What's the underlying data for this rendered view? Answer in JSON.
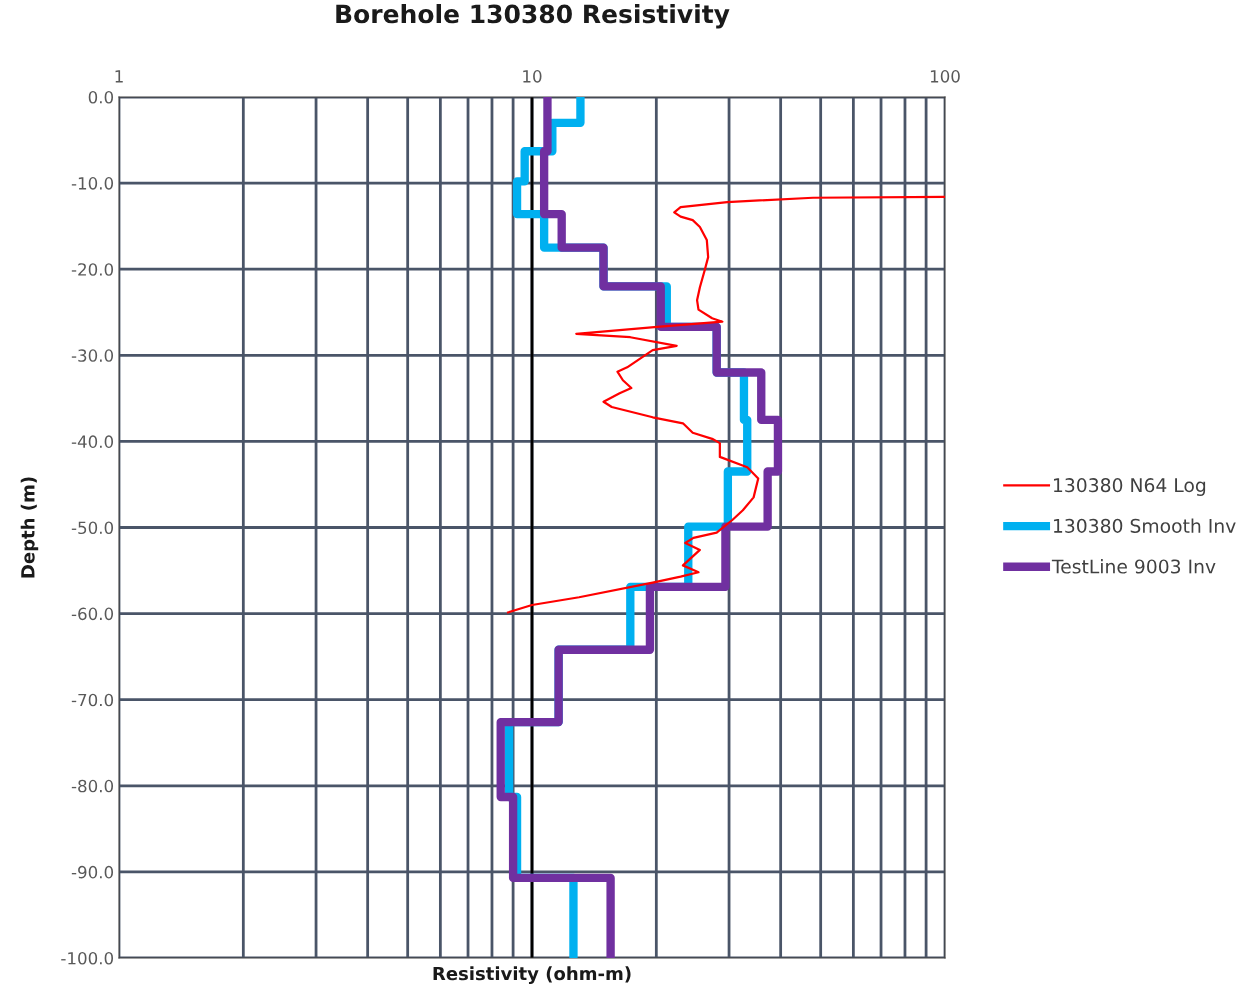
{
  "chart_data": {
    "type": "line",
    "title": "Borehole 130380 Resistivity",
    "xlabel": "Resistivity (ohm-m)",
    "ylabel": "Depth (m)",
    "log": "x",
    "grid": true,
    "legend": "right",
    "marker": "none",
    "line_style": "solid",
    "xlim": [
      1,
      100
    ],
    "xticks": [
      1,
      {
        "value": 2,
        "label": null
      },
      {
        "value": 3,
        "label": null
      },
      {
        "value": 4,
        "label": null
      },
      {
        "value": 5,
        "label": null
      },
      {
        "value": 6,
        "label": null
      },
      {
        "value": 7,
        "label": null
      },
      {
        "value": 8,
        "label": null
      },
      {
        "value": 9,
        "label": null
      },
      10,
      {
        "value": 20,
        "label": null
      },
      {
        "value": 30,
        "label": null
      },
      {
        "value": 40,
        "label": null
      },
      {
        "value": 50,
        "label": null
      },
      {
        "value": 60,
        "label": null
      },
      {
        "value": 70,
        "label": null
      },
      {
        "value": 80,
        "label": null
      },
      {
        "value": 90,
        "label": null
      },
      100
    ],
    "ylim": [
      -100,
      0
    ],
    "yticks": [
      {
        "value": 0,
        "label": "0.0"
      },
      {
        "value": -10,
        "label": "-10.0"
      },
      {
        "value": -20,
        "label": "-20.0"
      },
      {
        "value": -30,
        "label": "-30.0"
      },
      {
        "value": -40,
        "label": "-40.0"
      },
      {
        "value": -50,
        "label": "-50.0"
      },
      {
        "value": -60,
        "label": "-60.0"
      },
      {
        "value": -70,
        "label": "-70.0"
      },
      {
        "value": -80,
        "label": "-80.0"
      },
      {
        "value": -90,
        "label": "-90.0"
      },
      {
        "value": -100,
        "label": "-100.0"
      }
    ],
    "ref_lines": [
      {
        "axis": "x",
        "value": 10,
        "color": "#000000"
      }
    ],
    "series": [
      {
        "name": "130380 N64 Log",
        "color": "#ff0000",
        "x": [
          100,
          47.9,
          29.7,
          22.9,
          22.1,
          22.9,
          24.5,
          25.5,
          26.5,
          26.7,
          26.2,
          25.5,
          25.1,
          25.3,
          27.3,
          28.9,
          20.1,
          12.8,
          17.3,
          22.4,
          19.6,
          17.0,
          16.1,
          16.6,
          17.4,
          16.3,
          14.9,
          15.6,
          19.6,
          23.2,
          24.5,
          27.3,
          28.5,
          28.5,
          33.2,
          35.3,
          34.4,
          32.4,
          30.6,
          28.0,
          24.6,
          23.5,
          25.5,
          23.2,
          25.3,
          22.9,
          19.6,
          13.0,
          10.0,
          8.7
        ],
        "values": [
          -11.6,
          -11.7,
          -12.2,
          -12.8,
          -13.4,
          -13.9,
          -14.3,
          -15.1,
          -16.6,
          -18.6,
          -20.1,
          -22.1,
          -23.6,
          -24.7,
          -25.7,
          -26.1,
          -26.7,
          -27.5,
          -27.9,
          -28.9,
          -29.4,
          -31.4,
          -31.9,
          -32.9,
          -33.8,
          -34.4,
          -35.4,
          -36.0,
          -37.2,
          -37.9,
          -39.0,
          -39.7,
          -40.2,
          -41.8,
          -43.0,
          -44.3,
          -46.5,
          -48.0,
          -49.1,
          -50.6,
          -51.2,
          -51.8,
          -52.6,
          -54.4,
          -55.2,
          -55.7,
          -56.4,
          -58.1,
          -59.0,
          -59.9
        ]
      },
      {
        "name": "130380 Smooth Inv",
        "color": "#00b0f0",
        "x": [
          13.1,
          13.1,
          11.2,
          11.2,
          9.6,
          9.6,
          9.2,
          9.2,
          10.7,
          10.7,
          14.9,
          14.9,
          21.2,
          21.2,
          28.0,
          28.0,
          32.6,
          32.6,
          33.2,
          33.2,
          29.8,
          29.8,
          23.9,
          23.9,
          17.3,
          17.3,
          11.6,
          11.6,
          8.8,
          8.8,
          9.2,
          9.2,
          12.6,
          12.6
        ],
        "values": [
          0,
          -3,
          -3,
          -6.3,
          -6.3,
          -9.8,
          -9.8,
          -13.6,
          -13.6,
          -17.5,
          -17.5,
          -22,
          -22,
          -26.7,
          -26.7,
          -32,
          -32,
          -37.5,
          -37.5,
          -43.5,
          -43.5,
          -49.9,
          -49.9,
          -56.9,
          -56.9,
          -64.2,
          -64.2,
          -72.6,
          -72.6,
          -81.3,
          -81.3,
          -90.7,
          -90.7,
          -100
        ]
      },
      {
        "name": "TestLine 9003 Inv",
        "color": "#7030a0",
        "x": [
          10.9,
          10.9,
          10.7,
          10.7,
          11.8,
          11.8,
          14.9,
          14.9,
          20.5,
          20.5,
          28.0,
          28.0,
          35.9,
          35.9,
          39.4,
          39.4,
          37.2,
          37.2,
          29.4,
          29.4,
          19.3,
          19.3,
          11.6,
          11.6,
          8.4,
          8.4,
          9.0,
          9.0,
          15.5,
          15.5
        ],
        "values": [
          0,
          -6.3,
          -6.3,
          -13.6,
          -13.6,
          -17.5,
          -17.5,
          -22,
          -22,
          -26.7,
          -26.7,
          -32,
          -32,
          -37.5,
          -37.5,
          -43.5,
          -43.5,
          -49.9,
          -49.9,
          -56.9,
          -56.9,
          -64.2,
          -64.2,
          -72.6,
          -72.6,
          -81.3,
          -81.3,
          -90.7,
          -90.7,
          -100
        ]
      }
    ]
  }
}
